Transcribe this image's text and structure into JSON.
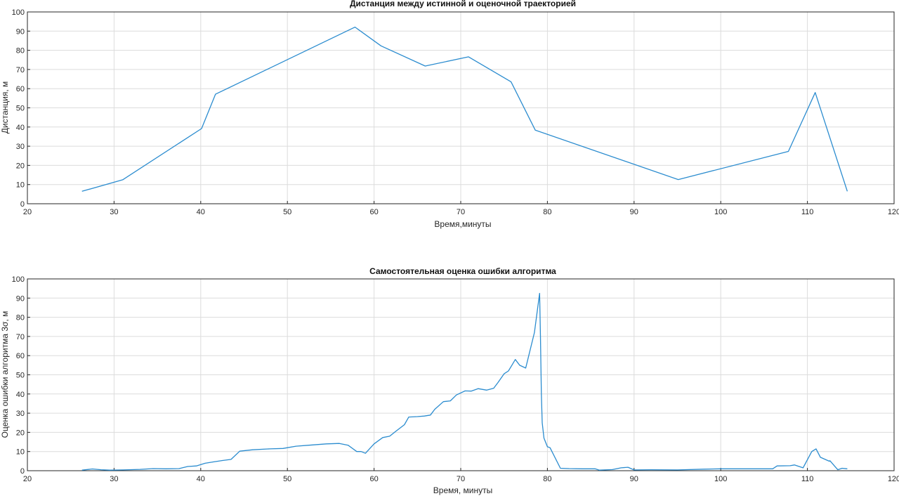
{
  "chart_data": [
    {
      "type": "line",
      "title": "Дистанция между истинной и оценочной траекторией",
      "xlabel": "Время,минуты",
      "ylabel": "Дистанция, м",
      "xlim": [
        20,
        120
      ],
      "ylim": [
        0,
        100
      ],
      "xticks": [
        20,
        30,
        40,
        50,
        60,
        70,
        80,
        90,
        100,
        110,
        120
      ],
      "yticks": [
        0,
        10,
        20,
        30,
        40,
        50,
        60,
        70,
        80,
        90,
        100
      ],
      "grid": true,
      "color": "#2b8ccf",
      "series": [
        {
          "x": [
            26.3,
            31.0,
            40.1,
            41.7,
            57.8,
            60.8,
            65.9,
            70.9,
            75.8,
            78.6,
            95.1,
            107.8,
            110.9,
            114.6
          ],
          "y": [
            6.5,
            12.5,
            39.2,
            57.1,
            92.1,
            82.3,
            71.8,
            76.6,
            63.6,
            38.4,
            12.6,
            27.3,
            58.0,
            6.5
          ]
        }
      ]
    },
    {
      "type": "line",
      "title": "Самостоятельная оценка ошибки алгоритма",
      "xlabel": "Время, минуты",
      "ylabel": "Оценка ошибки алгоритма 3σ, м",
      "xlim": [
        20,
        120
      ],
      "ylim": [
        0,
        100
      ],
      "xticks": [
        20,
        30,
        40,
        50,
        60,
        70,
        80,
        90,
        100,
        110,
        120
      ],
      "yticks": [
        0,
        10,
        20,
        30,
        40,
        50,
        60,
        70,
        80,
        90,
        100
      ],
      "grid": true,
      "color": "#2b8ccf",
      "series": [
        {
          "x": [
            26.3,
            27.5,
            28.5,
            29.5,
            31,
            33,
            34.5,
            36,
            37.5,
            38.5,
            39.5,
            40.5,
            41.5,
            42.5,
            43.5,
            44.5,
            46,
            48,
            49.5,
            51,
            52.5,
            54.5,
            56,
            57,
            58,
            58.5,
            59,
            60,
            61,
            61.8,
            62.5,
            63.5,
            64,
            65,
            65.8,
            66.5,
            67,
            68,
            68.8,
            69.5,
            70.5,
            71.2,
            72,
            73,
            73.8,
            74.3,
            75,
            75.5,
            75.9,
            76.3,
            76.8,
            77.5,
            78.5,
            79.1,
            79.2,
            79.3,
            79.4,
            79.6,
            80,
            80.3,
            81.5,
            82.5,
            84,
            85.5,
            86,
            87.5,
            88.5,
            89.3,
            90,
            92,
            95,
            98,
            100,
            103,
            106,
            106.5,
            108,
            108.5,
            109.5,
            110.5,
            111,
            111.5,
            112.5,
            112.6,
            113.5,
            114,
            114.6
          ],
          "y": [
            0.3,
            0.9,
            0.5,
            0.3,
            0.4,
            0.7,
            1.1,
            1.0,
            1.1,
            2.2,
            2.5,
            3.9,
            4.6,
            5.3,
            5.9,
            10.2,
            10.9,
            11.4,
            11.6,
            12.8,
            13.3,
            14.0,
            14.2,
            13.3,
            10.0,
            10.0,
            9.1,
            14.0,
            17.3,
            18.0,
            20.5,
            24.0,
            28.0,
            28.2,
            28.5,
            29.0,
            32.0,
            36.0,
            36.4,
            39.5,
            41.6,
            41.5,
            42.8,
            42.0,
            43.0,
            46.0,
            50.5,
            52.0,
            55.0,
            58.0,
            55.0,
            53.5,
            72.0,
            92.5,
            70.0,
            40.0,
            25.0,
            17.0,
            12.5,
            12.0,
            1.3,
            1.1,
            1.0,
            1.0,
            0.3,
            0.6,
            1.5,
            1.8,
            0.4,
            0.5,
            0.4,
            0.8,
            1.0,
            1.0,
            1.0,
            2.5,
            2.6,
            3.0,
            1.5,
            10.0,
            11.4,
            7.0,
            5.0,
            5.2,
            0.5,
            1.3,
            1.0
          ]
        }
      ]
    }
  ]
}
